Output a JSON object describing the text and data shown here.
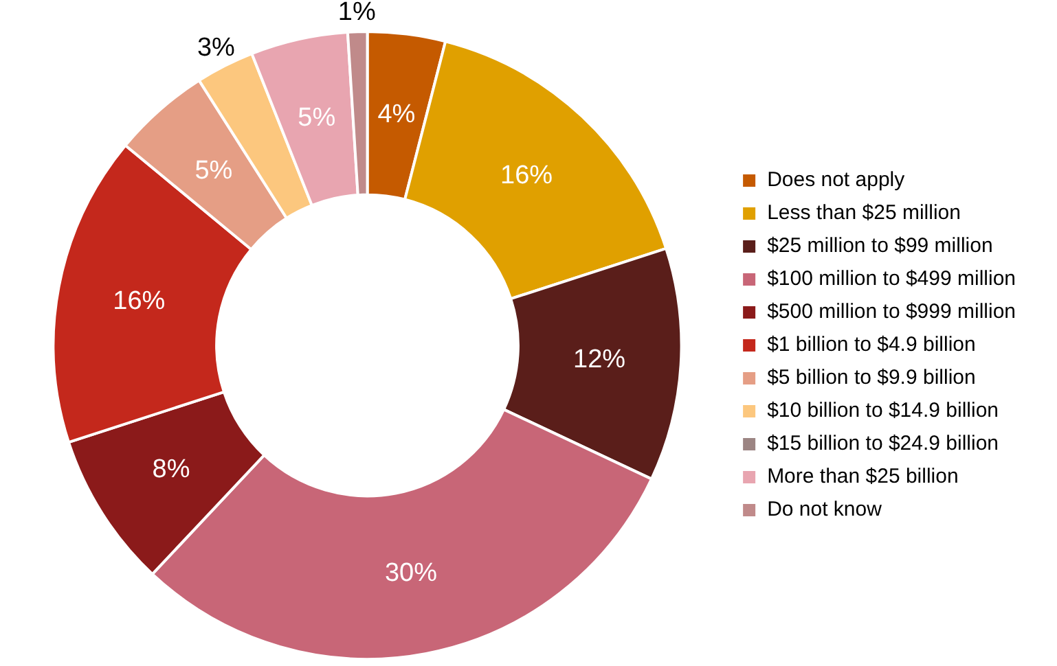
{
  "chart_data": {
    "type": "donut",
    "categories": [
      "Does not apply",
      "Less than $25 million",
      "$25 million to $99 million",
      "$100 million to $499 million",
      "$500 million to $999 million",
      "$1 billion to $4.9 billion",
      "$5 billion to $9.9 billion",
      "$10 billion to $14.9 billion",
      "$15 billion to $24.9 billion",
      "More than $25 billion",
      "Do not know"
    ],
    "values": [
      4,
      16,
      12,
      30,
      8,
      16,
      5,
      3,
      0,
      5,
      1
    ],
    "value_labels": [
      "4%",
      "16%",
      "12%",
      "30%",
      "8%",
      "16%",
      "5%",
      "3%",
      null,
      "5%",
      "1%"
    ],
    "colors": [
      "#c55a00",
      "#e0a000",
      "#5a1e1a",
      "#c86677",
      "#8b1a1a",
      "#c4281c",
      "#e59e85",
      "#fcc77e",
      "#9c8583",
      "#e8a5b0",
      "#c08a8a"
    ],
    "legend": "right"
  }
}
